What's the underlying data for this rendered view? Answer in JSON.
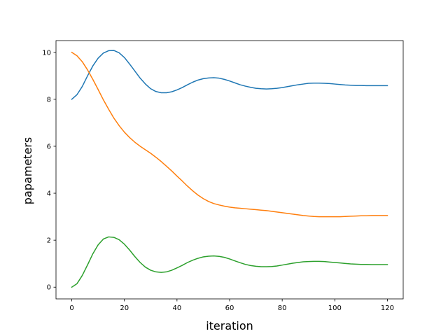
{
  "chart_data": {
    "type": "line",
    "title": "",
    "xlabel": "iteration",
    "ylabel": "papameters",
    "xlim": [
      -6,
      126
    ],
    "ylim": [
      -0.5,
      10.5
    ],
    "xticks": [
      0,
      20,
      40,
      60,
      80,
      100,
      120
    ],
    "yticks": [
      0,
      2,
      4,
      6,
      8,
      10
    ],
    "grid": false,
    "legend": "none",
    "x": [
      0,
      2,
      4,
      6,
      8,
      10,
      12,
      14,
      16,
      18,
      20,
      22,
      24,
      26,
      28,
      30,
      32,
      34,
      36,
      38,
      40,
      42,
      44,
      46,
      48,
      50,
      52,
      54,
      56,
      58,
      60,
      62,
      64,
      66,
      68,
      70,
      72,
      74,
      76,
      78,
      80,
      82,
      84,
      86,
      88,
      90,
      92,
      94,
      96,
      98,
      100,
      102,
      104,
      106,
      108,
      110,
      112,
      114,
      116,
      118,
      120
    ],
    "series": [
      {
        "color": "#1f77b4",
        "values": [
          8.0,
          8.2,
          8.55,
          9.0,
          9.42,
          9.75,
          9.97,
          10.07,
          10.08,
          9.98,
          9.78,
          9.5,
          9.2,
          8.9,
          8.65,
          8.45,
          8.33,
          8.28,
          8.28,
          8.32,
          8.4,
          8.5,
          8.62,
          8.73,
          8.82,
          8.88,
          8.91,
          8.92,
          8.9,
          8.85,
          8.78,
          8.7,
          8.62,
          8.56,
          8.51,
          8.47,
          8.45,
          8.44,
          8.45,
          8.47,
          8.5,
          8.54,
          8.58,
          8.62,
          8.65,
          8.68,
          8.69,
          8.69,
          8.68,
          8.67,
          8.65,
          8.63,
          8.61,
          8.6,
          8.59,
          8.59,
          8.58,
          8.58,
          8.58,
          8.58,
          8.58
        ]
      },
      {
        "color": "#ff7f0e",
        "values": [
          10.0,
          9.85,
          9.6,
          9.25,
          8.85,
          8.42,
          7.98,
          7.58,
          7.2,
          6.88,
          6.6,
          6.37,
          6.17,
          6.0,
          5.85,
          5.7,
          5.53,
          5.35,
          5.15,
          4.95,
          4.73,
          4.52,
          4.3,
          4.1,
          3.92,
          3.77,
          3.65,
          3.56,
          3.5,
          3.45,
          3.41,
          3.38,
          3.36,
          3.34,
          3.32,
          3.3,
          3.28,
          3.26,
          3.23,
          3.2,
          3.17,
          3.14,
          3.11,
          3.08,
          3.05,
          3.03,
          3.01,
          3.0,
          3.0,
          3.0,
          3.0,
          3.0,
          3.01,
          3.02,
          3.03,
          3.04,
          3.04,
          3.05,
          3.05,
          3.05,
          3.05
        ]
      },
      {
        "color": "#2ca02c",
        "values": [
          0.0,
          0.15,
          0.5,
          0.95,
          1.42,
          1.8,
          2.05,
          2.14,
          2.12,
          2.02,
          1.83,
          1.58,
          1.3,
          1.05,
          0.85,
          0.72,
          0.65,
          0.63,
          0.65,
          0.72,
          0.82,
          0.93,
          1.05,
          1.15,
          1.23,
          1.29,
          1.32,
          1.33,
          1.31,
          1.27,
          1.2,
          1.12,
          1.04,
          0.97,
          0.92,
          0.89,
          0.87,
          0.87,
          0.88,
          0.9,
          0.94,
          0.98,
          1.02,
          1.05,
          1.08,
          1.09,
          1.1,
          1.1,
          1.09,
          1.07,
          1.05,
          1.03,
          1.01,
          0.99,
          0.98,
          0.97,
          0.97,
          0.96,
          0.96,
          0.96,
          0.96
        ]
      }
    ]
  }
}
